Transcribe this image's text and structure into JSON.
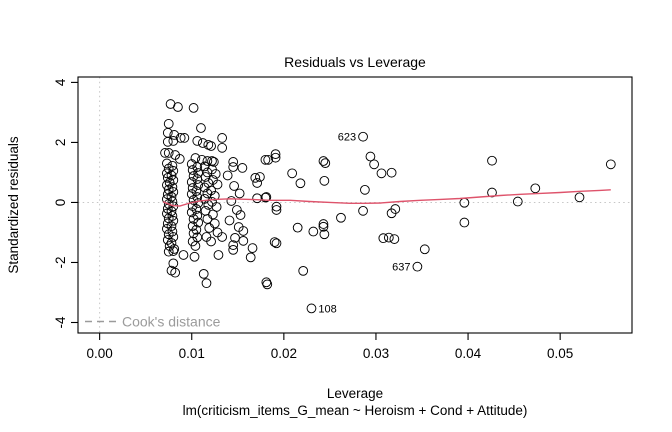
{
  "figure": {
    "title": "Residuals vs Leverage",
    "xlabel": "Leverage",
    "ylabel": "Standardized residuals",
    "model_annotation": "lm(criticism_items_G_mean ~ Heroism + Cond + Attitude)",
    "legend_label": "Cook's distance"
  },
  "chart_data": {
    "type": "scatter",
    "title": "Residuals vs Leverage",
    "xlabel": "Leverage",
    "ylabel": "Standardized residuals",
    "model_annotation": "lm(criticism_items_G_mean ~ Heroism + Cond + Attitude)",
    "xlim": [
      -0.00235,
      0.0578
    ],
    "ylim": [
      -4.35,
      4.18
    ],
    "x_ticks": [
      {
        "v": 0.0,
        "label": "0.00"
      },
      {
        "v": 0.01,
        "label": "0.01"
      },
      {
        "v": 0.02,
        "label": "0.02"
      },
      {
        "v": 0.03,
        "label": "0.03"
      },
      {
        "v": 0.04,
        "label": "0.04"
      },
      {
        "v": 0.05,
        "label": "0.05"
      }
    ],
    "y_ticks": [
      {
        "v": -4,
        "label": "-4"
      },
      {
        "v": -2,
        "label": "-2"
      },
      {
        "v": 0,
        "label": "0"
      },
      {
        "v": 2,
        "label": "2"
      },
      {
        "v": 4,
        "label": "4"
      }
    ],
    "grid": false,
    "reference_lines": {
      "vertical_dotted_x": 0,
      "horizontal_dotted_y": 0,
      "color": "#c6c6c6"
    },
    "legend": {
      "label": "Cook's distance",
      "color": "#9b9b9b",
      "line_style": "dashed",
      "position": "bottom-left"
    },
    "point_style": {
      "marker": "open-circle",
      "radius": 4.4,
      "stroke": "#000000"
    },
    "smooth_line_color": "#de536b",
    "labeled_points": [
      {
        "label": "623",
        "x": 0.0286,
        "y": 2.19,
        "label_side": "left"
      },
      {
        "label": "637",
        "x": 0.0345,
        "y": -2.14,
        "label_side": "left"
      },
      {
        "label": "108",
        "x": 0.023,
        "y": -3.53,
        "label_side": "right"
      }
    ],
    "smooth_line": [
      [
        0.0069,
        0.02
      ],
      [
        0.0079,
        -0.1
      ],
      [
        0.0087,
        -0.12
      ],
      [
        0.0098,
        -0.02
      ],
      [
        0.0109,
        0.05
      ],
      [
        0.0125,
        0.1
      ],
      [
        0.0142,
        0.12
      ],
      [
        0.0163,
        0.1
      ],
      [
        0.0185,
        0.07
      ],
      [
        0.0207,
        0.07
      ],
      [
        0.0228,
        0.03
      ],
      [
        0.025,
        0.0
      ],
      [
        0.0272,
        -0.03
      ],
      [
        0.0288,
        -0.03
      ],
      [
        0.0305,
        -0.02
      ],
      [
        0.0326,
        0.03
      ],
      [
        0.0348,
        0.07
      ],
      [
        0.037,
        0.1
      ],
      [
        0.0391,
        0.13
      ],
      [
        0.0413,
        0.18
      ],
      [
        0.0435,
        0.23
      ],
      [
        0.0457,
        0.27
      ],
      [
        0.0478,
        0.3
      ],
      [
        0.05,
        0.33
      ],
      [
        0.0522,
        0.37
      ],
      [
        0.0543,
        0.4
      ],
      [
        0.0555,
        0.42
      ]
    ],
    "points": [
      [
        0.0077,
        3.28
      ],
      [
        0.0085,
        3.18
      ],
      [
        0.0102,
        3.15
      ],
      [
        0.0075,
        2.62
      ],
      [
        0.0074,
        2.32
      ],
      [
        0.0081,
        2.25
      ],
      [
        0.0088,
        2.15
      ],
      [
        0.0092,
        2.15
      ],
      [
        0.0074,
        2.02
      ],
      [
        0.008,
        2.05
      ],
      [
        0.011,
        2.48
      ],
      [
        0.0106,
        2.05
      ],
      [
        0.0112,
        1.98
      ],
      [
        0.0118,
        1.92
      ],
      [
        0.0121,
        1.88
      ],
      [
        0.0133,
        2.15
      ],
      [
        0.0133,
        1.82
      ],
      [
        0.0071,
        1.65
      ],
      [
        0.0075,
        1.65
      ],
      [
        0.0082,
        1.58
      ],
      [
        0.0087,
        1.45
      ],
      [
        0.0104,
        1.48
      ],
      [
        0.0111,
        1.42
      ],
      [
        0.0117,
        1.38
      ],
      [
        0.0122,
        1.38
      ],
      [
        0.0124,
        1.35
      ],
      [
        0.0145,
        1.35
      ],
      [
        0.018,
        1.42
      ],
      [
        0.0073,
        1.3
      ],
      [
        0.0079,
        1.22
      ],
      [
        0.0075,
        1.13
      ],
      [
        0.008,
        1.05
      ],
      [
        0.0073,
        0.97
      ],
      [
        0.0078,
        0.9
      ],
      [
        0.0074,
        0.82
      ],
      [
        0.008,
        0.74
      ],
      [
        0.0076,
        0.66
      ],
      [
        0.0073,
        0.58
      ],
      [
        0.0079,
        0.51
      ],
      [
        0.0075,
        0.43
      ],
      [
        0.008,
        0.35
      ],
      [
        0.0074,
        0.27
      ],
      [
        0.0078,
        0.19
      ],
      [
        0.0073,
        0.11
      ],
      [
        0.0079,
        0.03
      ],
      [
        0.0075,
        -0.05
      ],
      [
        0.008,
        -0.13
      ],
      [
        0.0074,
        -0.21
      ],
      [
        0.0078,
        -0.29
      ],
      [
        0.0073,
        -0.37
      ],
      [
        0.0079,
        -0.45
      ],
      [
        0.0075,
        -0.53
      ],
      [
        0.008,
        -0.61
      ],
      [
        0.0074,
        -0.7
      ],
      [
        0.0078,
        -0.79
      ],
      [
        0.0073,
        -0.88
      ],
      [
        0.0079,
        -0.97
      ],
      [
        0.0075,
        -1.06
      ],
      [
        0.008,
        -1.15
      ],
      [
        0.0074,
        -1.25
      ],
      [
        0.0078,
        -1.35
      ],
      [
        0.0076,
        -1.45
      ],
      [
        0.0081,
        -1.55
      ],
      [
        0.01,
        1.28
      ],
      [
        0.0106,
        1.18
      ],
      [
        0.0101,
        1.08
      ],
      [
        0.0107,
        0.98
      ],
      [
        0.0102,
        0.88
      ],
      [
        0.0106,
        0.78
      ],
      [
        0.01,
        0.68
      ],
      [
        0.0107,
        0.58
      ],
      [
        0.0101,
        0.48
      ],
      [
        0.0105,
        0.38
      ],
      [
        0.01,
        0.28
      ],
      [
        0.0106,
        0.18
      ],
      [
        0.0102,
        0.08
      ],
      [
        0.0107,
        -0.02
      ],
      [
        0.0101,
        -0.12
      ],
      [
        0.0105,
        -0.22
      ],
      [
        0.01,
        -0.33
      ],
      [
        0.0106,
        -0.44
      ],
      [
        0.0102,
        -0.55
      ],
      [
        0.0107,
        -0.67
      ],
      [
        0.0101,
        -0.79
      ],
      [
        0.0105,
        -0.91
      ],
      [
        0.0102,
        -1.03
      ],
      [
        0.0106,
        -1.16
      ],
      [
        0.0101,
        -1.3
      ],
      [
        0.0104,
        -1.45
      ],
      [
        0.0114,
        1.2
      ],
      [
        0.0122,
        1.1
      ],
      [
        0.0117,
        1.0
      ],
      [
        0.0126,
        0.95
      ],
      [
        0.0115,
        0.85
      ],
      [
        0.0123,
        0.75
      ],
      [
        0.0118,
        0.65
      ],
      [
        0.0128,
        0.6
      ],
      [
        0.0114,
        0.5
      ],
      [
        0.0121,
        0.4
      ],
      [
        0.0117,
        0.3
      ],
      [
        0.0125,
        0.22
      ],
      [
        0.0114,
        0.12
      ],
      [
        0.0122,
        0.02
      ],
      [
        0.0118,
        -0.08
      ],
      [
        0.0127,
        -0.15
      ],
      [
        0.0115,
        -0.28
      ],
      [
        0.0123,
        -0.4
      ],
      [
        0.0117,
        -0.55
      ],
      [
        0.0125,
        -0.7
      ],
      [
        0.0119,
        -0.85
      ],
      [
        0.0128,
        -1.0
      ],
      [
        0.0116,
        -1.15
      ],
      [
        0.0133,
        -1.15
      ],
      [
        0.0121,
        -1.3
      ],
      [
        0.0145,
        1.18
      ],
      [
        0.0155,
        1.15
      ],
      [
        0.0139,
        0.9
      ],
      [
        0.0146,
        0.55
      ],
      [
        0.0152,
        0.3
      ],
      [
        0.0143,
        0.05
      ],
      [
        0.0149,
        -0.25
      ],
      [
        0.0141,
        -0.6
      ],
      [
        0.0156,
        -0.95
      ],
      [
        0.0147,
        -1.18
      ],
      [
        0.0145,
        -1.42
      ],
      [
        0.0156,
        -1.28
      ],
      [
        0.0164,
        -1.83
      ],
      [
        0.0166,
        -1.52
      ],
      [
        0.0169,
        0.82
      ],
      [
        0.0174,
        0.85
      ],
      [
        0.0171,
        0.65
      ],
      [
        0.0181,
        0.18
      ],
      [
        0.0153,
        -0.42
      ],
      [
        0.0151,
        -0.82
      ],
      [
        0.0171,
        0.14
      ],
      [
        0.018,
        0.16
      ],
      [
        0.0191,
        1.61
      ],
      [
        0.0191,
        1.49
      ],
      [
        0.0183,
        1.42
      ],
      [
        0.0209,
        0.97
      ],
      [
        0.0218,
        0.64
      ],
      [
        0.0243,
        1.38
      ],
      [
        0.0245,
        1.31
      ],
      [
        0.0244,
        0.72
      ],
      [
        0.0294,
        1.53
      ],
      [
        0.0298,
        1.27
      ],
      [
        0.0306,
        0.97
      ],
      [
        0.0317,
        0.99
      ],
      [
        0.0288,
        0.42
      ],
      [
        0.0192,
        -0.14
      ],
      [
        0.0192,
        -0.25
      ],
      [
        0.0215,
        -0.84
      ],
      [
        0.0232,
        -0.97
      ],
      [
        0.0243,
        -0.72
      ],
      [
        0.0243,
        -0.81
      ],
      [
        0.0244,
        -1.06
      ],
      [
        0.0262,
        -0.51
      ],
      [
        0.0286,
        -0.28
      ],
      [
        0.019,
        -1.32
      ],
      [
        0.0192,
        -1.36
      ],
      [
        0.0182,
        -2.73
      ],
      [
        0.0221,
        -2.28
      ],
      [
        0.0181,
        -2.66
      ],
      [
        0.0308,
        -1.19
      ],
      [
        0.0314,
        -1.17
      ],
      [
        0.032,
        -1.22
      ],
      [
        0.0317,
        -0.36
      ],
      [
        0.0321,
        -0.22
      ],
      [
        0.0353,
        -1.56
      ],
      [
        0.0075,
        -1.64
      ],
      [
        0.008,
        -1.62
      ],
      [
        0.0091,
        -1.75
      ],
      [
        0.0103,
        -1.81
      ],
      [
        0.008,
        -2.03
      ],
      [
        0.0078,
        -2.27
      ],
      [
        0.0082,
        -2.34
      ],
      [
        0.0129,
        -1.75
      ],
      [
        0.0145,
        -1.58
      ],
      [
        0.0113,
        -2.38
      ],
      [
        0.0116,
        -2.69
      ],
      [
        0.0396,
        -0.01
      ],
      [
        0.0396,
        -0.67
      ],
      [
        0.0426,
        0.33
      ],
      [
        0.0426,
        1.39
      ],
      [
        0.0454,
        0.03
      ],
      [
        0.0473,
        0.47
      ],
      [
        0.0521,
        0.17
      ],
      [
        0.0555,
        1.27
      ]
    ]
  }
}
